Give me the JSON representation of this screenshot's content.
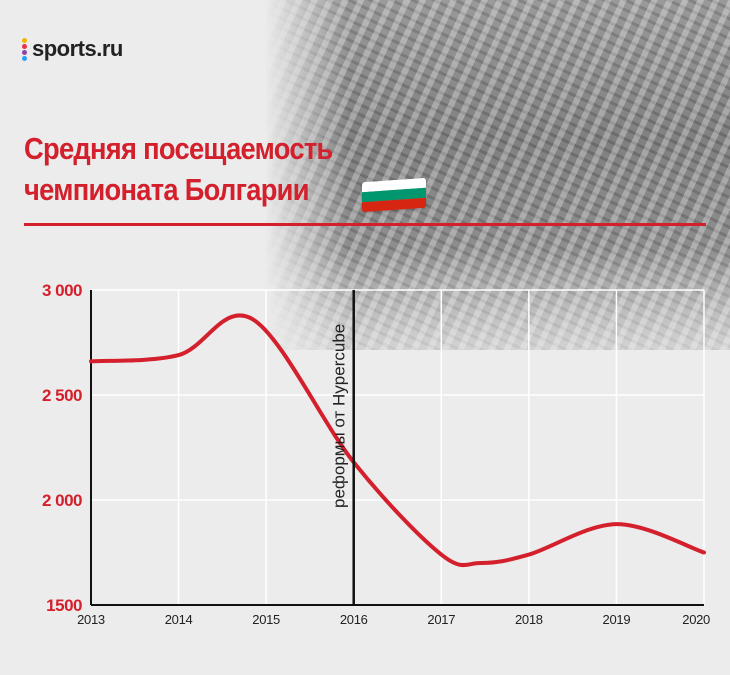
{
  "brand": {
    "name": "sports.ru",
    "dot_colors": [
      "#f4b400",
      "#e8334a",
      "#8e44ad",
      "#2a9df4"
    ]
  },
  "title_lines": [
    "Средняя посещаемость",
    "чемпионата Болгарии"
  ],
  "flag": {
    "icon": "bulgaria-flag-icon",
    "colors": [
      "#ffffff",
      "#00966e",
      "#d62612"
    ]
  },
  "colors": {
    "accent": "#d4202c",
    "axis": "#111111"
  },
  "chart_data": {
    "type": "line",
    "title": "Средняя посещаемость чемпионата Болгарии",
    "xlabel": "",
    "ylabel": "",
    "xlim": [
      2013,
      2020
    ],
    "ylim": [
      1500,
      3000
    ],
    "x_ticks": [
      "2013",
      "2014",
      "2015",
      "2016",
      "2017",
      "2018",
      "2019",
      "2020"
    ],
    "y_ticks": [
      1500,
      2000,
      2500,
      3000
    ],
    "y_tick_labels": [
      "1500",
      "2 000",
      "2 500",
      "3 000"
    ],
    "grid": true,
    "series": [
      {
        "color": "#d4202c",
        "x": [
          2013,
          2014,
          2014.85,
          2016,
          2017,
          2017.45,
          2018,
          2019,
          2020
        ],
        "y": [
          2660,
          2690,
          2860,
          2180,
          1740,
          1700,
          1740,
          1885,
          1750
        ]
      }
    ],
    "annotations": [
      {
        "x": 2016,
        "text": "реформы от Hypercube"
      }
    ]
  }
}
